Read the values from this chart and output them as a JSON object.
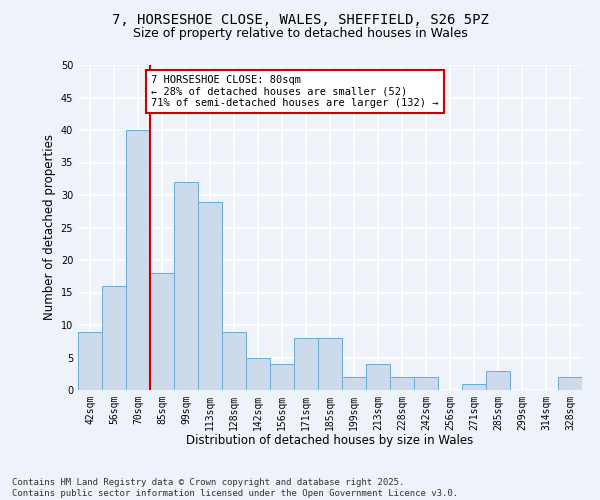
{
  "title_line1": "7, HORSESHOE CLOSE, WALES, SHEFFIELD, S26 5PZ",
  "title_line2": "Size of property relative to detached houses in Wales",
  "xlabel": "Distribution of detached houses by size in Wales",
  "ylabel": "Number of detached properties",
  "categories": [
    "42sqm",
    "56sqm",
    "70sqm",
    "85sqm",
    "99sqm",
    "113sqm",
    "128sqm",
    "142sqm",
    "156sqm",
    "171sqm",
    "185sqm",
    "199sqm",
    "213sqm",
    "228sqm",
    "242sqm",
    "256sqm",
    "271sqm",
    "285sqm",
    "299sqm",
    "314sqm",
    "328sqm"
  ],
  "values": [
    9,
    16,
    40,
    18,
    32,
    29,
    9,
    5,
    4,
    8,
    8,
    2,
    4,
    2,
    2,
    0,
    1,
    3,
    0,
    0,
    2
  ],
  "bar_color": "#ccdaeb",
  "bar_edge_color": "#6aaad4",
  "vline_color": "#cc0000",
  "annotation_text": "7 HORSESHOE CLOSE: 80sqm\n← 28% of detached houses are smaller (52)\n71% of semi-detached houses are larger (132) →",
  "annotation_box_color": "#ffffff",
  "annotation_box_edge_color": "#cc0000",
  "ylim": [
    0,
    50
  ],
  "yticks": [
    0,
    5,
    10,
    15,
    20,
    25,
    30,
    35,
    40,
    45,
    50
  ],
  "footer_text": "Contains HM Land Registry data © Crown copyright and database right 2025.\nContains public sector information licensed under the Open Government Licence v3.0.",
  "bg_color": "#eef2f9",
  "grid_color": "#ffffff",
  "title_fontsize": 10,
  "subtitle_fontsize": 9,
  "tick_fontsize": 7,
  "label_fontsize": 8.5,
  "footer_fontsize": 6.5,
  "annotation_fontsize": 7.5
}
